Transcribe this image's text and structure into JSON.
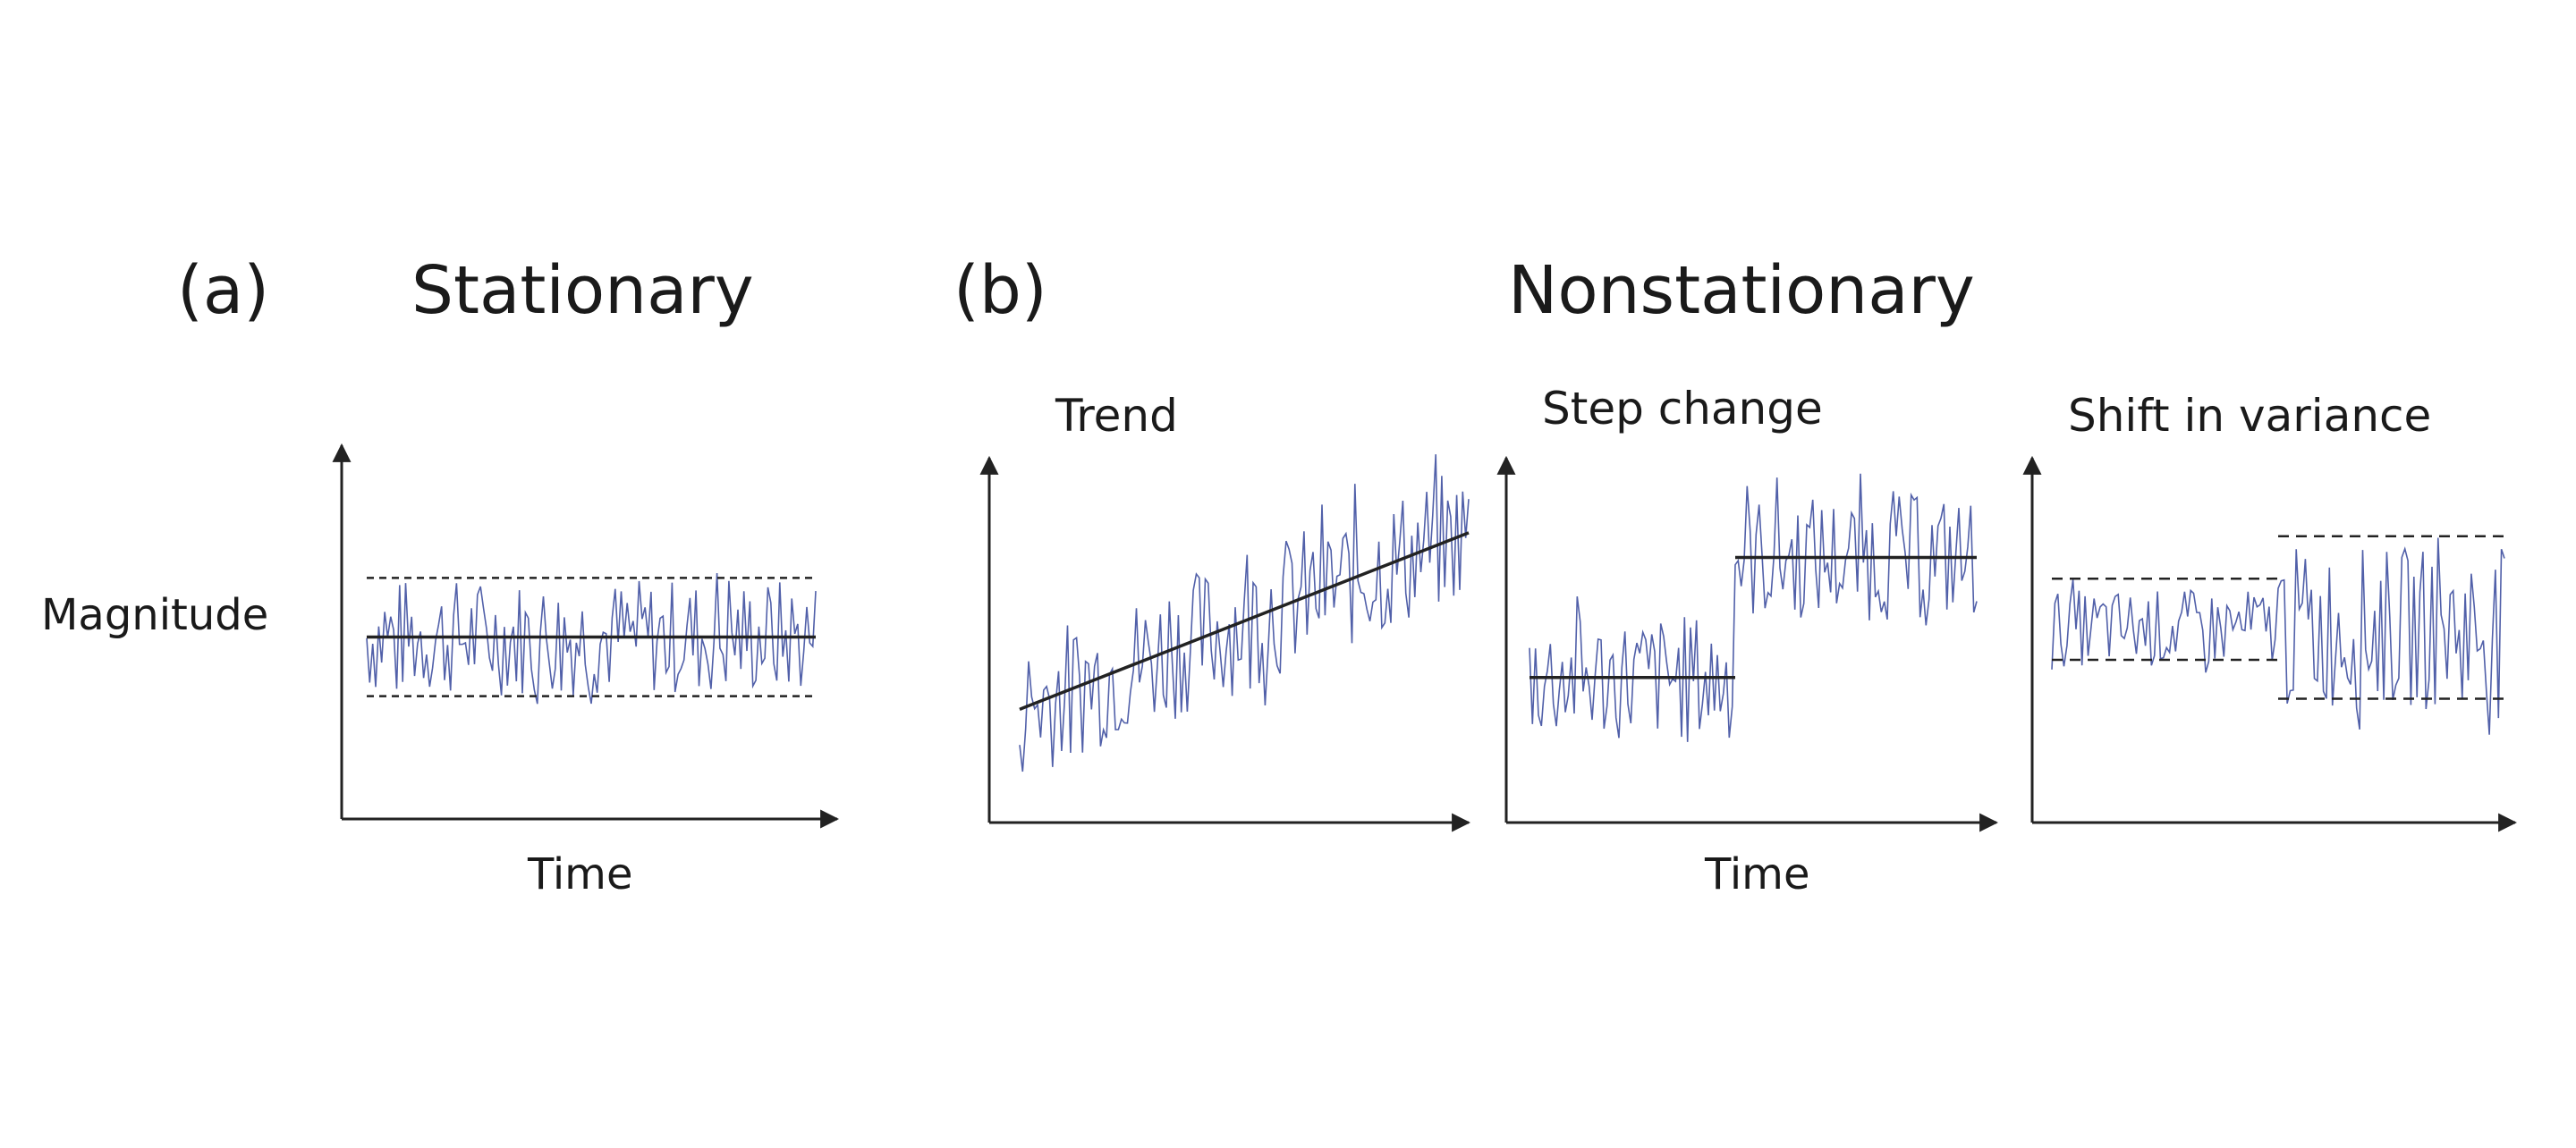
{
  "labels": {
    "a_tag": "(a)",
    "a_title": "Stationary",
    "b_tag": "(b)",
    "b_title": "Nonstationary",
    "y_label": "Magnitude",
    "x_label_a": "Time",
    "x_label_b": "Time",
    "trend_title": "Trend",
    "step_title": "Step change",
    "variance_title": "Shift in variance"
  },
  "colors": {
    "signal": "#33449a",
    "line": "#222222",
    "axis": "#222222"
  },
  "panels": [
    {
      "id": "stationary",
      "kind": "stationary",
      "mean": 0.5,
      "band": [
        0.29,
        0.71
      ],
      "noise": 0.21
    },
    {
      "id": "trend",
      "kind": "trend",
      "mean_start": 0.27,
      "mean_end": 0.77,
      "noise": 0.2
    },
    {
      "id": "step",
      "kind": "step",
      "mean_before": 0.36,
      "mean_after": 0.7,
      "step_at": 0.46,
      "noise": 0.18
    },
    {
      "id": "variance",
      "kind": "variance",
      "mean": 0.5,
      "shift_at": 0.5,
      "band_before": [
        0.41,
        0.64
      ],
      "band_after": [
        0.3,
        0.76
      ],
      "noise_before": 0.11,
      "noise_after": 0.23
    }
  ]
}
